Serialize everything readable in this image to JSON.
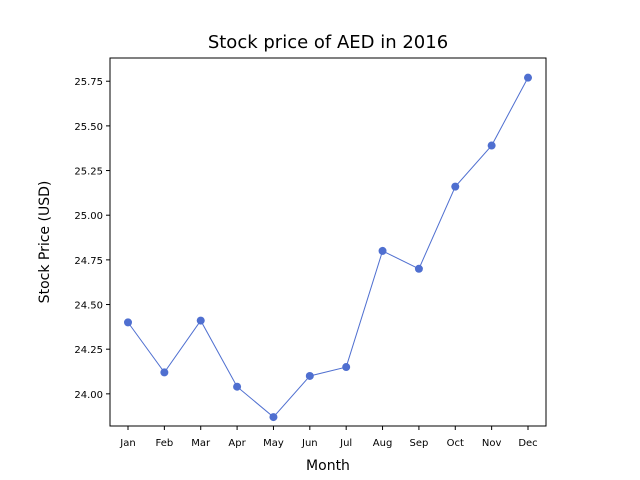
{
  "chart_data": {
    "type": "line",
    "title": "Stock price of AED in 2016",
    "xlabel": "Month",
    "ylabel": "Stock Price (USD)",
    "categories": [
      "Jan",
      "Feb",
      "Mar",
      "Apr",
      "May",
      "Jun",
      "Jul",
      "Aug",
      "Sep",
      "Oct",
      "Nov",
      "Dec"
    ],
    "series": [
      {
        "values": [
          24.4,
          24.12,
          24.41,
          24.04,
          23.87,
          24.1,
          24.15,
          24.8,
          24.7,
          25.16,
          25.39,
          25.77
        ]
      }
    ],
    "yticks": [
      24.0,
      24.25,
      24.5,
      24.75,
      25.0,
      25.25,
      25.5,
      25.75
    ],
    "ytick_labels": [
      "24.00",
      "24.25",
      "24.50",
      "24.75",
      "25.00",
      "25.25",
      "25.50",
      "25.75"
    ],
    "ylim": [
      23.82,
      25.88
    ],
    "grid": false,
    "line_color": "#4f6fd0",
    "marker_color": "#4f6fd0"
  }
}
